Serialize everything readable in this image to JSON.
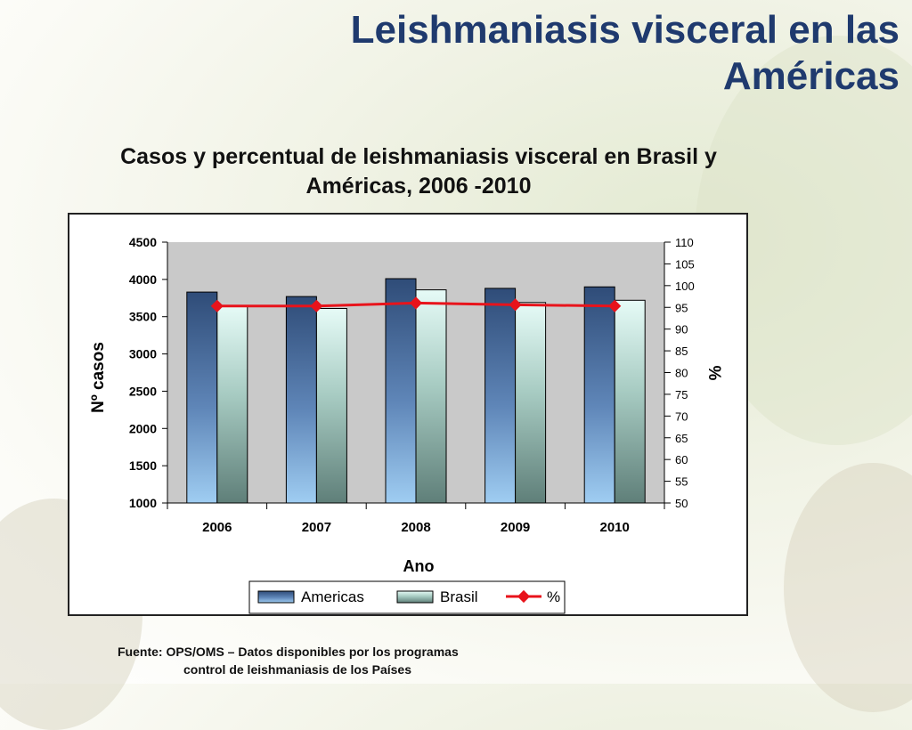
{
  "slide": {
    "title_line1": "Leishmaniasis visceral en las",
    "title_line2": "Américas",
    "source_line1": "Fuente:  OPS/OMS – Datos disponibles por los programas",
    "source_line2": "control de leishmaniasis de los Países"
  },
  "chart_data": {
    "type": "bar",
    "title_line1": "Casos y percentual de leishmaniasis visceral en Brasil y",
    "title_line2": "Américas, 2006 -2010",
    "categories": [
      "2006",
      "2007",
      "2008",
      "2009",
      "2010"
    ],
    "xlabel": "Ano",
    "ylabel": "Nº casos",
    "y2label": "%",
    "ylim": [
      1000,
      4500
    ],
    "y2lim": [
      50,
      110
    ],
    "yticks": [
      "1000",
      "1500",
      "2000",
      "2500",
      "3000",
      "3500",
      "4000",
      "4500"
    ],
    "y2ticks": [
      "50",
      "55",
      "60",
      "65",
      "70",
      "75",
      "80",
      "85",
      "90",
      "95",
      "100",
      "105",
      "110"
    ],
    "series": [
      {
        "name": "Americas",
        "type": "bar",
        "axis": "left",
        "values": [
          3830,
          3770,
          4010,
          3880,
          3900
        ],
        "color": "#3b5a84"
      },
      {
        "name": "Brasil",
        "type": "bar",
        "axis": "left",
        "values": [
          3650,
          3610,
          3860,
          3690,
          3720
        ],
        "color": "#bfeee6"
      },
      {
        "name": "%",
        "type": "line",
        "axis": "right",
        "values": [
          95.3,
          95.3,
          96.0,
          95.6,
          95.3
        ],
        "color": "#e8131b"
      }
    ],
    "grid": false,
    "plot_background": "#c9c9c9",
    "legend": "bottom"
  }
}
